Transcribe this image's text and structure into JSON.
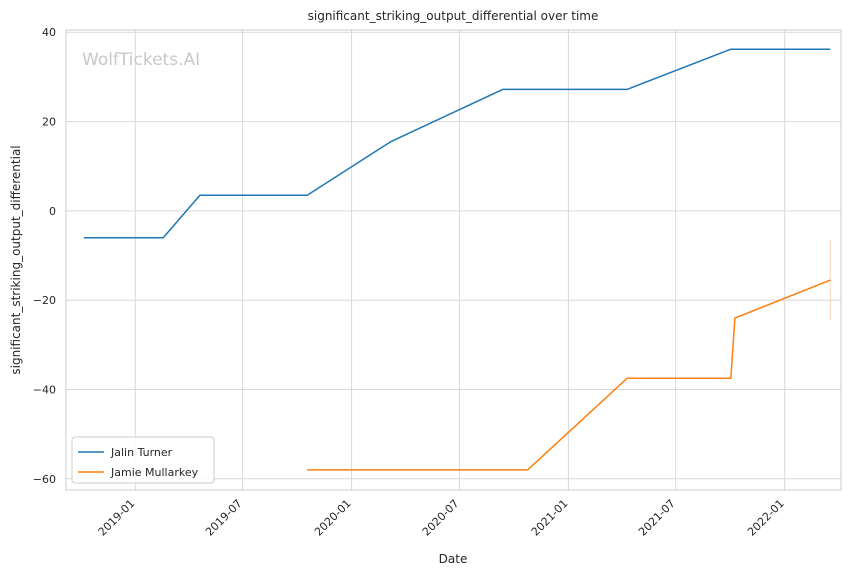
{
  "chart_data": {
    "type": "line",
    "title": "significant_striking_output_differential over time",
    "xlabel": "Date",
    "ylabel": "significant_striking_output_differential",
    "watermark": "WolfTickets.AI",
    "xlim": [
      "2018-09-06",
      "2022-04-06"
    ],
    "ylim": [
      -62.5,
      40.5
    ],
    "x_ticks": [
      "2019-01",
      "2019-07",
      "2020-01",
      "2020-07",
      "2021-01",
      "2021-07",
      "2022-01"
    ],
    "y_ticks": [
      40,
      20,
      0,
      -20,
      -40,
      -60
    ],
    "grid": true,
    "legend_position": "lower-left",
    "series": [
      {
        "name": "Jalin Turner",
        "color": "#1f77b4",
        "x": [
          "2018-10-06",
          "2019-02-17",
          "2019-04-20",
          "2019-10-18",
          "2020-03-07",
          "2020-09-12",
          "2021-04-10",
          "2021-10-02",
          "2022-03-19"
        ],
        "y": [
          -6,
          -6,
          3.5,
          3.5,
          15.5,
          27.2,
          27.2,
          36.2,
          36.2
        ]
      },
      {
        "name": "Jamie Mullarkey",
        "color": "#ff7f0e",
        "x": [
          "2019-10-18",
          "2020-10-24",
          "2021-04-10",
          "2021-10-02",
          "2021-10-09",
          "2022-03-19"
        ],
        "y": [
          -58,
          -58,
          -37.5,
          -37.5,
          -24,
          -15.5
        ]
      }
    ],
    "error_bar": {
      "series": "Jamie Mullarkey",
      "color": "#ff7f0e",
      "x": "2022-03-19",
      "y_range": [
        -24.5,
        -6.5
      ]
    }
  }
}
